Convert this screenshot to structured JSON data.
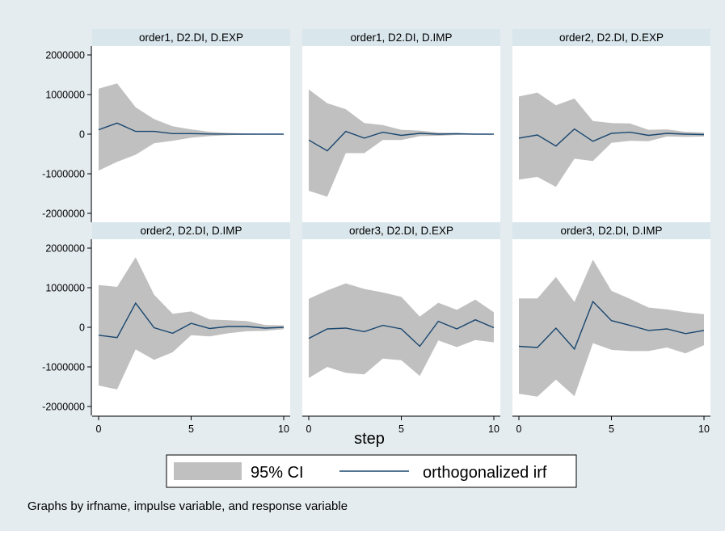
{
  "background_color": "#e5ecf0",
  "plot_background": "#ffffff",
  "header_color": "#d9e6ec",
  "band_color": "#c0c0c0",
  "line_color": "#1a476f",
  "xlabel": "step",
  "note": "Graphs by irfname, impulse variable, and response variable",
  "legend": {
    "ci_label": "95% CI",
    "line_label": "orthogonalized irf"
  },
  "chart_data": [
    {
      "type": "area",
      "title": "order1, D2.DI, D.EXP",
      "x": [
        0,
        1,
        2,
        3,
        4,
        5,
        6,
        7,
        8,
        9,
        10
      ],
      "ylim": [
        -2000000,
        2000000
      ],
      "xlim": [
        0,
        10
      ],
      "yticks": [
        2000000,
        1000000,
        0,
        -1000000,
        -2000000
      ],
      "xticks": [
        0,
        5,
        10
      ],
      "series": [
        {
          "name": "95% CI",
          "upper": [
            1150000,
            1280000,
            680000,
            380000,
            200000,
            120000,
            60000,
            30000,
            15000,
            8000,
            5000
          ],
          "lower": [
            -920000,
            -700000,
            -520000,
            -230000,
            -170000,
            -90000,
            -50000,
            -25000,
            -12000,
            -7000,
            -4000
          ]
        },
        {
          "name": "orthogonalized irf",
          "values": [
            110000,
            280000,
            70000,
            70000,
            15000,
            15000,
            5000,
            3000,
            1000,
            500,
            0
          ]
        }
      ]
    },
    {
      "type": "area",
      "title": "order1, D2.DI, D.IMP",
      "x": [
        0,
        1,
        2,
        3,
        4,
        5,
        6,
        7,
        8,
        9,
        10
      ],
      "ylim": [
        -2000000,
        2000000
      ],
      "xlim": [
        0,
        10
      ],
      "yticks": [
        2000000,
        1000000,
        0,
        -1000000,
        -2000000
      ],
      "xticks": [
        0,
        5,
        10
      ],
      "series": [
        {
          "name": "95% CI",
          "upper": [
            1130000,
            780000,
            630000,
            280000,
            230000,
            110000,
            90000,
            40000,
            30000,
            10000,
            5000
          ],
          "lower": [
            -1430000,
            -1580000,
            -480000,
            -480000,
            -150000,
            -150000,
            -50000,
            -40000,
            -20000,
            -10000,
            -5000
          ]
        },
        {
          "name": "orthogonalized irf",
          "values": [
            -150000,
            -420000,
            70000,
            -100000,
            50000,
            -30000,
            20000,
            0,
            10000,
            0,
            0
          ]
        }
      ]
    },
    {
      "type": "area",
      "title": "order2, D2.DI, D.EXP",
      "x": [
        0,
        1,
        2,
        3,
        4,
        5,
        6,
        7,
        8,
        9,
        10
      ],
      "ylim": [
        -2000000,
        2000000
      ],
      "xlim": [
        0,
        10
      ],
      "yticks": [
        2000000,
        1000000,
        0,
        -1000000,
        -2000000
      ],
      "xticks": [
        0,
        5,
        10
      ],
      "series": [
        {
          "name": "95% CI",
          "upper": [
            950000,
            1050000,
            730000,
            900000,
            330000,
            280000,
            270000,
            110000,
            120000,
            60000,
            40000
          ],
          "lower": [
            -1150000,
            -1080000,
            -1330000,
            -620000,
            -680000,
            -220000,
            -170000,
            -180000,
            -60000,
            -70000,
            -60000
          ]
        },
        {
          "name": "orthogonalized irf",
          "values": [
            -100000,
            -20000,
            -300000,
            130000,
            -180000,
            20000,
            50000,
            -30000,
            20000,
            0,
            -10000
          ]
        }
      ]
    },
    {
      "type": "area",
      "title": "order2, D2.DI, D.IMP",
      "x": [
        0,
        1,
        2,
        3,
        4,
        5,
        6,
        7,
        8,
        9,
        10
      ],
      "ylim": [
        -2000000,
        2000000
      ],
      "xlim": [
        0,
        10
      ],
      "yticks": [
        2000000,
        1000000,
        0,
        -1000000,
        -2000000
      ],
      "xticks": [
        0,
        5,
        10
      ],
      "series": [
        {
          "name": "95% CI",
          "upper": [
            1070000,
            1020000,
            1770000,
            820000,
            340000,
            400000,
            200000,
            180000,
            160000,
            60000,
            50000
          ],
          "lower": [
            -1470000,
            -1570000,
            -560000,
            -820000,
            -630000,
            -200000,
            -230000,
            -150000,
            -100000,
            -90000,
            -50000
          ]
        },
        {
          "name": "orthogonalized irf",
          "values": [
            -200000,
            -260000,
            610000,
            -10000,
            -150000,
            100000,
            -30000,
            20000,
            20000,
            -20000,
            0
          ]
        }
      ]
    },
    {
      "type": "area",
      "title": "order3, D2.DI, D.EXP",
      "x": [
        0,
        1,
        2,
        3,
        4,
        5,
        6,
        7,
        8,
        9,
        10
      ],
      "ylim": [
        -2000000,
        2000000
      ],
      "xlim": [
        0,
        10
      ],
      "yticks": [
        2000000,
        1000000,
        0,
        -1000000,
        -2000000
      ],
      "xticks": [
        0,
        5,
        10
      ],
      "series": [
        {
          "name": "95% CI",
          "upper": [
            720000,
            930000,
            1110000,
            970000,
            880000,
            770000,
            270000,
            620000,
            440000,
            700000,
            380000
          ],
          "lower": [
            -1280000,
            -1000000,
            -1150000,
            -1190000,
            -790000,
            -830000,
            -1230000,
            -330000,
            -500000,
            -320000,
            -380000
          ]
        },
        {
          "name": "orthogonalized irf",
          "values": [
            -280000,
            -40000,
            -20000,
            -110000,
            50000,
            -40000,
            -480000,
            150000,
            -40000,
            190000,
            -10000
          ]
        }
      ]
    },
    {
      "type": "area",
      "title": "order3, D2.DI, D.IMP",
      "x": [
        0,
        1,
        2,
        3,
        4,
        5,
        6,
        7,
        8,
        9,
        10
      ],
      "ylim": [
        -2000000,
        2000000
      ],
      "xlim": [
        0,
        10
      ],
      "yticks": [
        2000000,
        1000000,
        0,
        -1000000,
        -2000000
      ],
      "xticks": [
        0,
        5,
        10
      ],
      "series": [
        {
          "name": "95% CI",
          "upper": [
            730000,
            730000,
            1270000,
            640000,
            1710000,
            920000,
            720000,
            500000,
            450000,
            380000,
            330000
          ],
          "lower": [
            -1680000,
            -1750000,
            -1320000,
            -1740000,
            -400000,
            -570000,
            -600000,
            -600000,
            -510000,
            -660000,
            -450000
          ]
        },
        {
          "name": "orthogonalized irf",
          "values": [
            -480000,
            -510000,
            -20000,
            -550000,
            650000,
            170000,
            50000,
            -80000,
            -40000,
            -160000,
            -80000
          ]
        }
      ]
    }
  ]
}
